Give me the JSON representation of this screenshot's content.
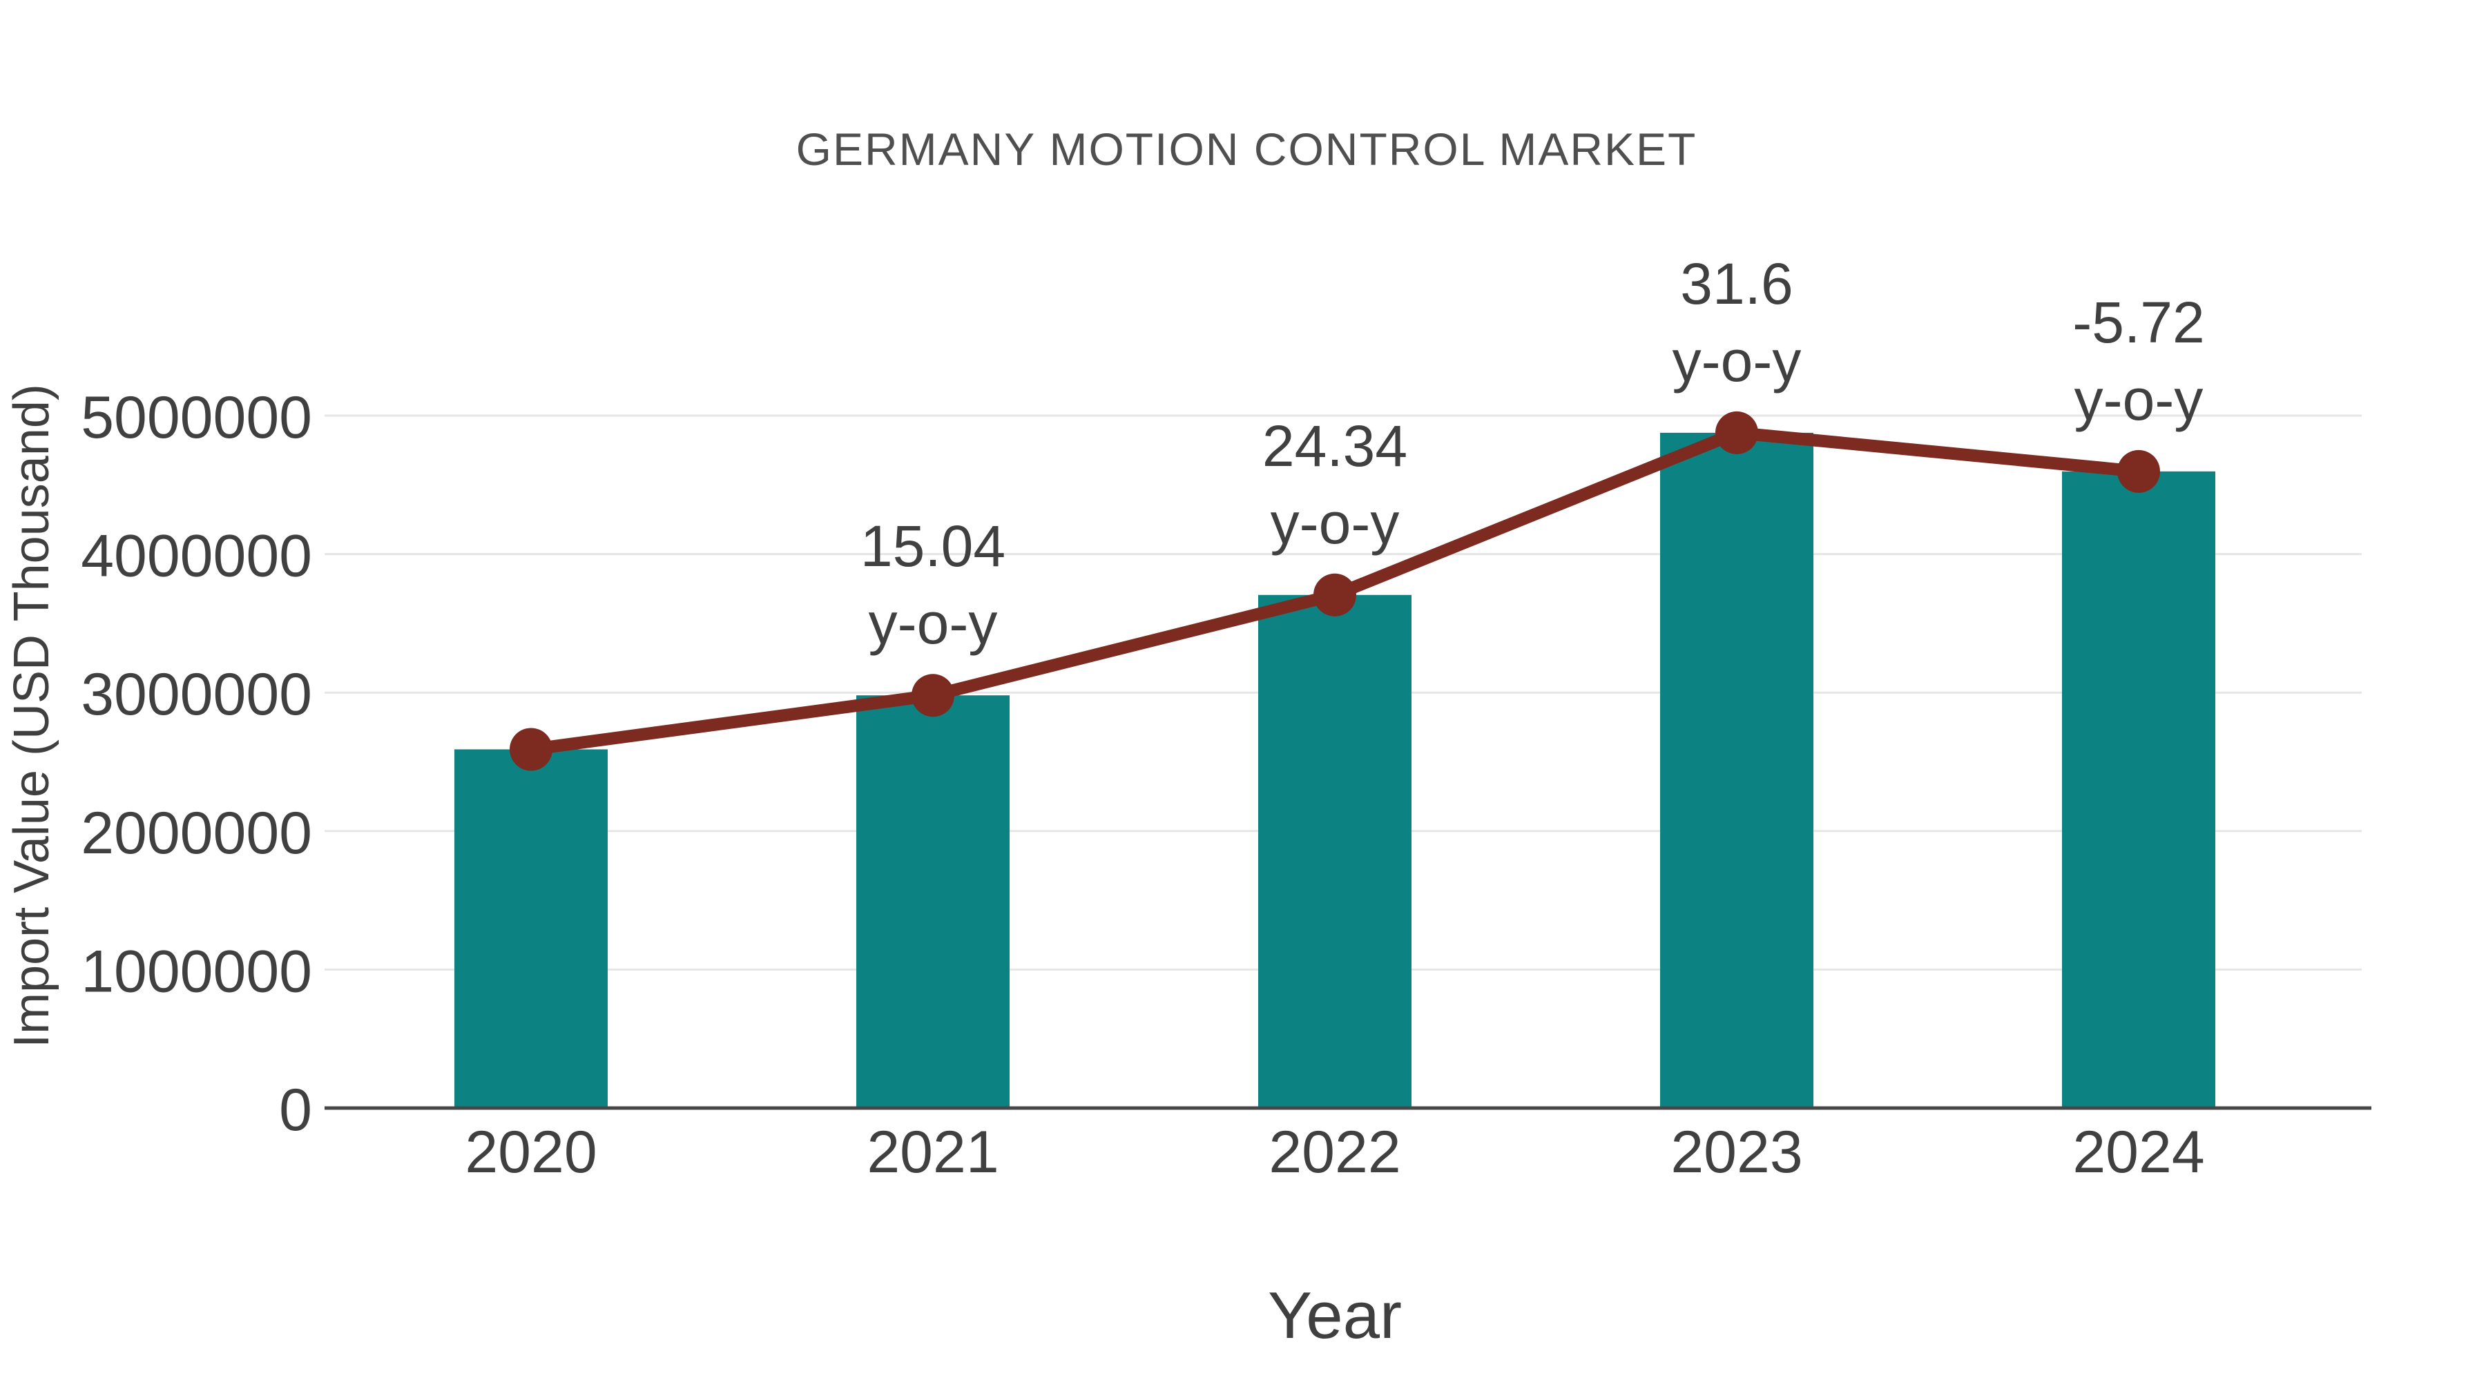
{
  "colors": {
    "bar": "#0d8282",
    "line": "#7d2a21",
    "grid": "#e6e6e6",
    "axis": "#474747",
    "text": "#404040",
    "title_text": "#4f4f4f",
    "background": "#ffffff"
  },
  "chart_data": {
    "type": "bar",
    "overlay": "line",
    "title": "GERMANY MOTION CONTROL MARKET",
    "xlabel": "Year",
    "ylabel": "Import Value (USD Thousand)",
    "categories": [
      "2020",
      "2021",
      "2022",
      "2023",
      "2024"
    ],
    "values": [
      2590000,
      2980000,
      3705000,
      4876000,
      4597000
    ],
    "line_values": [
      2590000,
      2980000,
      3705000,
      4876000,
      4597000
    ],
    "yoy_labels": [
      "",
      "15.04",
      "24.34",
      "31.6",
      "-5.72"
    ],
    "yoy_suffix": "y-o-y",
    "yticks": [
      0,
      1000000,
      2000000,
      3000000,
      4000000,
      5000000
    ],
    "ylim": [
      0,
      5000000
    ],
    "grid": "horizontal",
    "legend": "none"
  }
}
